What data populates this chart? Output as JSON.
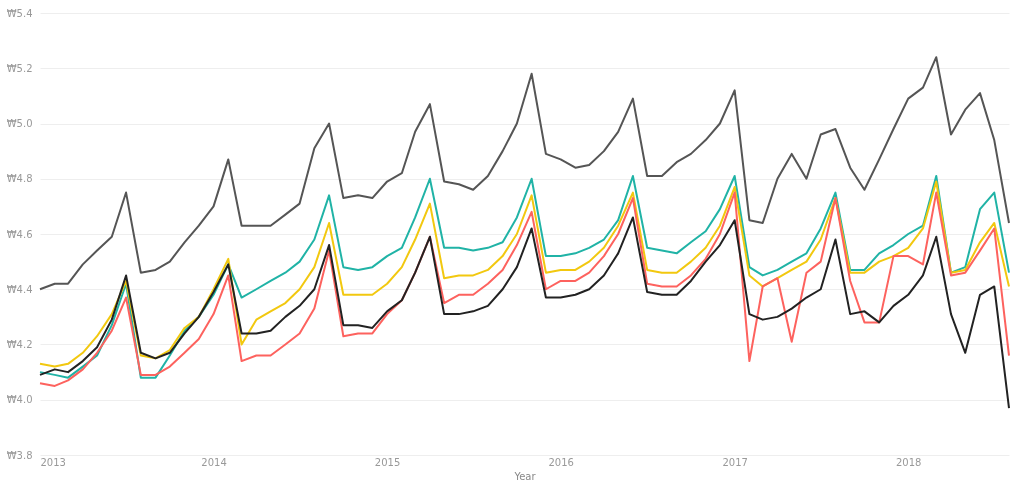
{
  "chart_data": {
    "type": "line",
    "xlabel": "Year",
    "x": [
      "2013-01",
      "2013-02",
      "2013-03",
      "2013-04",
      "2013-05",
      "2013-06",
      "2013-07",
      "2013-08",
      "2013-09",
      "2013-10",
      "2013-11",
      "2013-12",
      "2014-01",
      "2014-02",
      "2014-03",
      "2014-04",
      "2014-05",
      "2014-06",
      "2014-07",
      "2014-08",
      "2014-09",
      "2014-10",
      "2014-11",
      "2014-12",
      "2015-01",
      "2015-02",
      "2015-03",
      "2015-04",
      "2015-05",
      "2015-06",
      "2015-07",
      "2015-08",
      "2015-09",
      "2015-10",
      "2015-11",
      "2015-12",
      "2016-01",
      "2016-02",
      "2016-03",
      "2016-04",
      "2016-05",
      "2016-06",
      "2016-07",
      "2016-08",
      "2016-09",
      "2016-10",
      "2016-11",
      "2016-12",
      "2017-01",
      "2017-02",
      "2017-03",
      "2017-04",
      "2017-05",
      "2017-06",
      "2017-07",
      "2017-08",
      "2017-09",
      "2017-10",
      "2017-11",
      "2017-12",
      "2018-01",
      "2018-02",
      "2018-03",
      "2018-04",
      "2018-05",
      "2018-06",
      "2018-07",
      "2018-08"
    ],
    "series": [
      {
        "color": "#555555",
        "values": [
          4.4,
          4.42,
          4.42,
          4.49,
          4.54,
          4.59,
          4.75,
          4.46,
          4.47,
          4.5,
          4.57,
          4.63,
          4.7,
          4.87,
          4.63,
          4.63,
          4.63,
          4.67,
          4.71,
          4.91,
          5.0,
          4.73,
          4.74,
          4.73,
          4.79,
          4.82,
          4.97,
          5.07,
          4.79,
          4.78,
          4.76,
          4.81,
          4.9,
          5.0,
          5.18,
          4.89,
          4.87,
          4.84,
          4.85,
          4.9,
          4.97,
          5.09,
          4.81,
          4.81,
          4.86,
          4.89,
          4.94,
          5.0,
          5.12,
          4.65,
          4.64,
          4.8,
          4.89,
          4.8,
          4.96,
          4.98,
          4.84,
          4.76,
          4.87,
          4.98,
          5.09,
          5.13,
          5.24,
          4.96,
          5.05,
          5.11,
          4.94,
          4.64
        ]
      },
      {
        "color": "#20b3a6",
        "values": [
          4.1,
          4.09,
          4.08,
          4.12,
          4.16,
          4.27,
          4.42,
          4.08,
          4.08,
          4.16,
          4.25,
          4.3,
          4.38,
          4.49,
          4.37,
          4.4,
          4.43,
          4.46,
          4.5,
          4.58,
          4.74,
          4.48,
          4.47,
          4.48,
          4.52,
          4.55,
          4.66,
          4.8,
          4.55,
          4.55,
          4.54,
          4.55,
          4.57,
          4.66,
          4.8,
          4.52,
          4.52,
          4.53,
          4.55,
          4.58,
          4.65,
          4.81,
          4.55,
          4.54,
          4.53,
          4.57,
          4.61,
          4.69,
          4.81,
          4.48,
          4.45,
          4.47,
          4.5,
          4.53,
          4.62,
          4.75,
          4.47,
          4.47,
          4.53,
          4.56,
          4.6,
          4.63,
          4.81,
          4.46,
          4.48,
          4.69,
          4.75,
          4.46
        ]
      },
      {
        "color": "#f2c80f",
        "values": [
          4.13,
          4.12,
          4.13,
          4.17,
          4.23,
          4.31,
          4.43,
          4.16,
          4.15,
          4.18,
          4.26,
          4.3,
          4.4,
          4.51,
          4.2,
          4.29,
          4.32,
          4.35,
          4.4,
          4.48,
          4.64,
          4.38,
          4.38,
          4.38,
          4.42,
          4.48,
          4.58,
          4.71,
          4.44,
          4.45,
          4.45,
          4.47,
          4.52,
          4.6,
          4.74,
          4.46,
          4.47,
          4.47,
          4.5,
          4.55,
          4.63,
          4.75,
          4.47,
          4.46,
          4.46,
          4.5,
          4.55,
          4.63,
          4.77,
          4.45,
          4.41,
          4.44,
          4.47,
          4.5,
          4.58,
          4.73,
          4.46,
          4.46,
          4.5,
          4.52,
          4.55,
          4.62,
          4.79,
          4.46,
          4.47,
          4.57,
          4.64,
          4.41
        ]
      },
      {
        "color": "#fd625e",
        "values": [
          4.06,
          4.05,
          4.07,
          4.11,
          4.17,
          4.25,
          4.37,
          4.09,
          4.09,
          4.12,
          4.17,
          4.22,
          4.31,
          4.45,
          4.14,
          4.16,
          4.16,
          4.2,
          4.24,
          4.33,
          4.54,
          4.23,
          4.24,
          4.24,
          4.31,
          4.36,
          4.46,
          4.59,
          4.35,
          4.38,
          4.38,
          4.42,
          4.47,
          4.56,
          4.68,
          4.4,
          4.43,
          4.43,
          4.46,
          4.52,
          4.6,
          4.73,
          4.42,
          4.41,
          4.41,
          4.45,
          4.51,
          4.6,
          4.75,
          4.14,
          4.41,
          4.44,
          4.21,
          4.46,
          4.5,
          4.73,
          4.43,
          4.28,
          4.28,
          4.52,
          4.52,
          4.49,
          4.75,
          4.45,
          4.46,
          4.54,
          4.62,
          4.16
        ]
      },
      {
        "color": "#222222",
        "values": [
          4.09,
          4.11,
          4.1,
          4.14,
          4.19,
          4.29,
          4.45,
          4.17,
          4.15,
          4.17,
          4.24,
          4.3,
          4.39,
          4.49,
          4.24,
          4.24,
          4.25,
          4.3,
          4.34,
          4.4,
          4.56,
          4.27,
          4.27,
          4.26,
          4.32,
          4.36,
          4.46,
          4.59,
          4.31,
          4.31,
          4.32,
          4.34,
          4.4,
          4.48,
          4.62,
          4.37,
          4.37,
          4.38,
          4.4,
          4.45,
          4.53,
          4.66,
          4.39,
          4.38,
          4.38,
          4.43,
          4.5,
          4.56,
          4.65,
          4.31,
          4.29,
          4.3,
          4.33,
          4.37,
          4.4,
          4.58,
          4.31,
          4.32,
          4.28,
          4.34,
          4.38,
          4.45,
          4.59,
          4.31,
          4.17,
          4.38,
          4.41,
          3.97
        ]
      }
    ],
    "xlim": [
      "2013-01",
      "2018-08"
    ],
    "xticks": [
      {
        "value": "2013",
        "label": "2013"
      },
      {
        "value": "2014",
        "label": "2014"
      },
      {
        "value": "2015",
        "label": "2015"
      },
      {
        "value": "2016",
        "label": "2016"
      },
      {
        "value": "2017",
        "label": "2017"
      },
      {
        "value": "2018",
        "label": "2018"
      }
    ],
    "ylim": [
      3.8,
      5.4
    ],
    "yticks": [
      {
        "value": 3.8,
        "label": "₩3.8"
      },
      {
        "value": 4.0,
        "label": "₩4.0"
      },
      {
        "value": 4.2,
        "label": "₩4.2"
      },
      {
        "value": 4.4,
        "label": "₩4.4"
      },
      {
        "value": 4.6,
        "label": "₩4.6"
      },
      {
        "value": 4.8,
        "label": "₩4.8"
      },
      {
        "value": 5.0,
        "label": "₩5.0"
      },
      {
        "value": 5.2,
        "label": "₩5.2"
      },
      {
        "value": 5.4,
        "label": "₩5.4"
      }
    ],
    "grid": "y",
    "legend": false,
    "marker": "none",
    "line_style": "solid"
  }
}
